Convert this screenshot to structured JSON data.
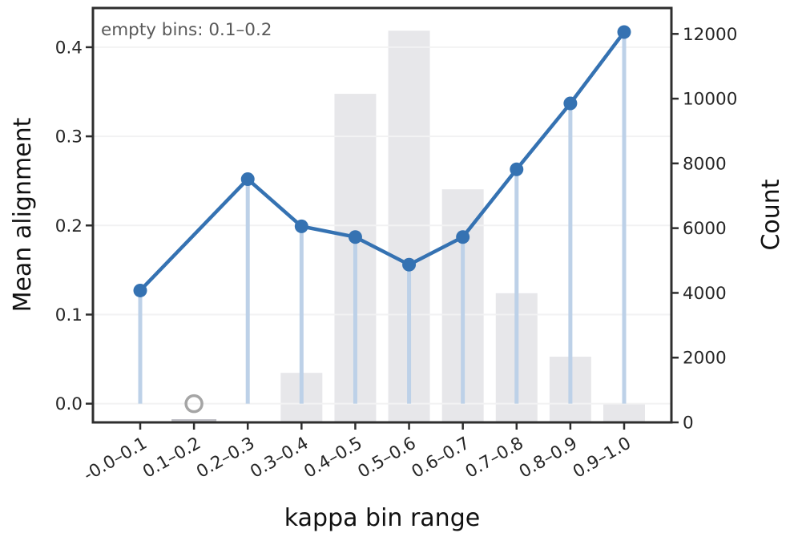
{
  "chart_data": {
    "type": "line+bar",
    "title": "",
    "annotation": "empty bins: 0.1–0.2",
    "xlabel": "kappa bin range",
    "ylabel_left": "Mean alignment",
    "ylabel_right": "Count",
    "categories": [
      "-0.0–0.1",
      "0.1–0.2",
      "0.2–0.3",
      "0.3–0.4",
      "0.4–0.5",
      "0.5–0.6",
      "0.6–0.7",
      "0.7–0.8",
      "0.8–0.9",
      "0.9–1.0"
    ],
    "series": [
      {
        "name": "Mean alignment",
        "type": "line",
        "axis": "left",
        "stems": true,
        "values": [
          0.127,
          null,
          0.252,
          0.199,
          0.187,
          0.156,
          0.187,
          0.263,
          0.337,
          0.417
        ]
      },
      {
        "name": "Count",
        "type": "bar",
        "axis": "right",
        "values": [
          0,
          0,
          0,
          1530,
          10150,
          12100,
          7200,
          3990,
          2030,
          560
        ]
      }
    ],
    "empty_bins": [
      1
    ],
    "yticks_left": [
      0.0,
      0.1,
      0.2,
      0.3,
      0.4
    ],
    "yticks_right": [
      0,
      2000,
      4000,
      6000,
      8000,
      10000,
      12000
    ],
    "ylim_left": [
      -0.021,
      0.444
    ],
    "ylim_right": [
      0,
      12800
    ],
    "grid": "horizontal-left-ticks",
    "legend": "none",
    "colors": {
      "line": "#3572b2",
      "stem": "#bdd1e8",
      "bar": "#e7e7ea",
      "zero_bar": "#bdbdc4",
      "empty_marker": "#a5a5a5",
      "grid": "#f2f2f3",
      "axis": "#2e2e2e",
      "tick_label": "#262626",
      "annotation": "#595959"
    }
  }
}
